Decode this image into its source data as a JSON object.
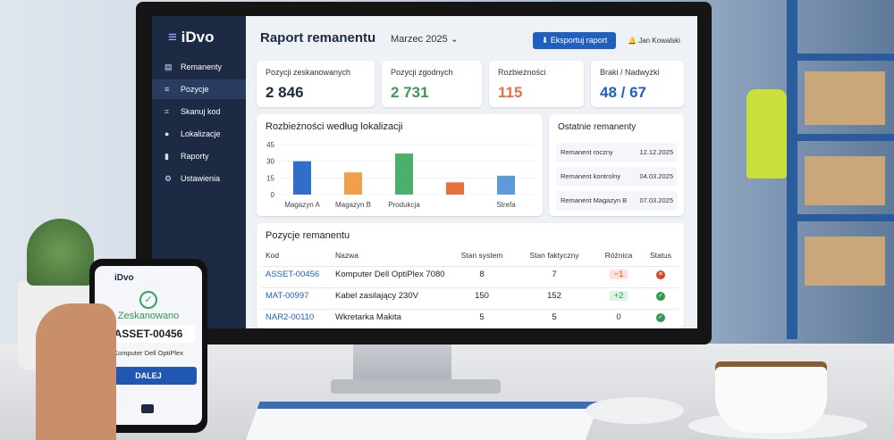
{
  "monitor": {
    "logo": "iDvo",
    "header": {
      "title": "Raport remanentu",
      "period": "Marzec 2025",
      "export_button": "Eksportuj raport",
      "user": "Jan Kowalski"
    },
    "sidebar": [
      "Remanenty",
      "Pozycje",
      "Skanuj kod",
      "Lokalizacje",
      "Raporty",
      "Ustawienia"
    ],
    "kpis": [
      {
        "label": "Pozycji zeskanowanych",
        "value": "2 846"
      },
      {
        "label": "Pozycji zgodnych",
        "value": "2 731"
      },
      {
        "label": "Rozbieżności",
        "value": "115"
      },
      {
        "label": "Braki / Nadwyżki",
        "value": "48 / 67"
      }
    ],
    "chart": {
      "type": "bar",
      "title": "Rozbieżności według lokalizacji",
      "categories": [
        "Magazyn A",
        "Magazyn B",
        "Produkcja",
        null,
        "Strefa"
      ],
      "values": [
        30,
        20,
        37,
        11,
        17
      ],
      "colors": [
        "#2f6fc9",
        "#f0a04a",
        "#4caf6a",
        "#e8703e",
        "#5b9bd8"
      ],
      "ylim": [
        0,
        45
      ],
      "yticks": [
        0,
        15,
        30,
        45
      ]
    },
    "recent": {
      "title": "Ostatnie remanenty",
      "items": [
        {
          "name": "Remanent roczny",
          "date": "12.12.2025"
        },
        {
          "name": "Remanent kontrolny",
          "date": "04.03.2025"
        },
        {
          "name": "Remanent Magazyn B",
          "date": "07.03.2025"
        }
      ]
    },
    "table": {
      "title": "Pozycje remanentu",
      "columns": [
        "Kod",
        "Nazwa",
        "Stan system",
        "Stan faktyczny",
        "Różnica",
        "Status"
      ],
      "rows": [
        [
          "ASSET-00456",
          "Komputer Dell OptiPlex 7080",
          "8",
          "7",
          "−1"
        ],
        [
          "MAT-00997",
          "Kabel zasilający 230V",
          "150",
          "152",
          "+2"
        ],
        [
          "NAR2-00110",
          "Wkretarka Makita",
          "5",
          "5",
          "0"
        ]
      ]
    }
  },
  "phone": {
    "logo": "iDvo",
    "status": "Zeskanowano",
    "code": "ASSET-00456",
    "item": "Komputer Dell OptiPlex",
    "button": "DALEJ"
  }
}
